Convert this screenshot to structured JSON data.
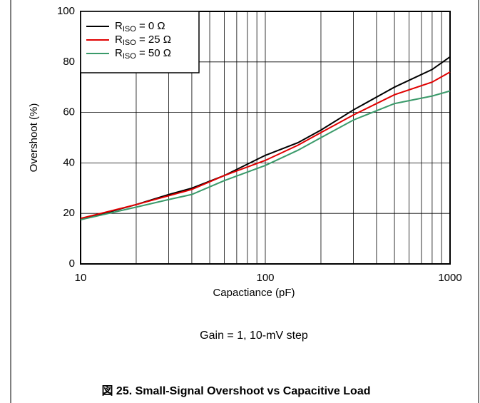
{
  "chart_data": {
    "type": "line",
    "x_label": "Capactiance (pF)",
    "y_label": "Overshoot (%)",
    "annotation": "Gain = 1, 10-mV step",
    "caption": "図 25. Small-Signal Overshoot vs Capacitive Load",
    "x": [
      10,
      20,
      30,
      40,
      60,
      100,
      150,
      200,
      300,
      500,
      800,
      1000
    ],
    "series": [
      {
        "name": "RISO = 0 Ω",
        "color": "#000000",
        "values": [
          17.5,
          23.5,
          27.5,
          30,
          35,
          43,
          48,
          53,
          61,
          70,
          77,
          82
        ]
      },
      {
        "name": "RISO = 25 Ω",
        "color": "#e00000",
        "values": [
          18,
          23.5,
          27,
          29.5,
          35,
          41,
          47,
          52,
          59,
          67,
          72,
          76
        ]
      },
      {
        "name": "RISO = 50 Ω",
        "color": "#3a9a6a",
        "values": [
          17.5,
          22.5,
          25.5,
          27.5,
          33,
          39,
          45,
          50,
          57,
          63.5,
          66.5,
          68.5
        ]
      }
    ],
    "xscale": "log",
    "xlim": [
      10,
      1000
    ],
    "xticks": [
      10,
      100,
      1000
    ],
    "xminor": [
      20,
      30,
      40,
      50,
      60,
      70,
      80,
      90,
      200,
      300,
      400,
      500,
      600,
      700,
      800,
      900
    ],
    "ylim": [
      0,
      100
    ],
    "yticks": [
      0,
      20,
      40,
      60,
      80,
      100
    ],
    "grid": true,
    "legend": "upper left"
  }
}
